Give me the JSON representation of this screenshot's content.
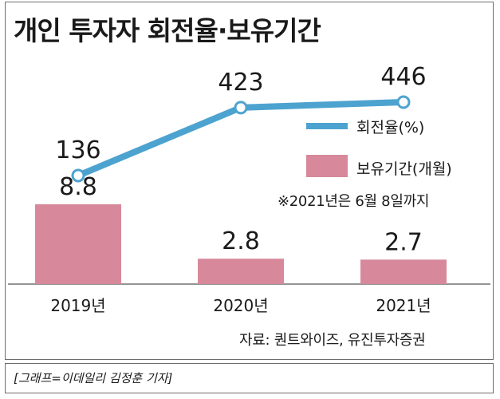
{
  "title": "개인 투자자 회전율·보유기간",
  "chart_data": {
    "type": "bar+line",
    "title": "개인 투자자 회전율·보유기간",
    "categories": [
      "2019년",
      "2020년",
      "2021년"
    ],
    "series": [
      {
        "name": "회전율(%)",
        "type": "line",
        "values": [
          136,
          423,
          446
        ],
        "labels": [
          "136",
          "423",
          "446"
        ]
      },
      {
        "name": "보유기간(개월)",
        "type": "bar",
        "values": [
          8.8,
          2.8,
          2.7
        ],
        "labels": [
          "8.8",
          "2.8",
          "2.7"
        ]
      }
    ],
    "line_range": [
      0,
      560
    ],
    "bar_range": [
      0,
      12.5
    ],
    "note": "※2021년은 6월 8일까지",
    "source": "자료: 퀀트와이즈, 유진투자증권",
    "legend_position": "right"
  },
  "colors": {
    "line": "#4da3cf",
    "bar": "#d7899b"
  },
  "credit": "[그래프=이데일리 김정훈 기자]"
}
